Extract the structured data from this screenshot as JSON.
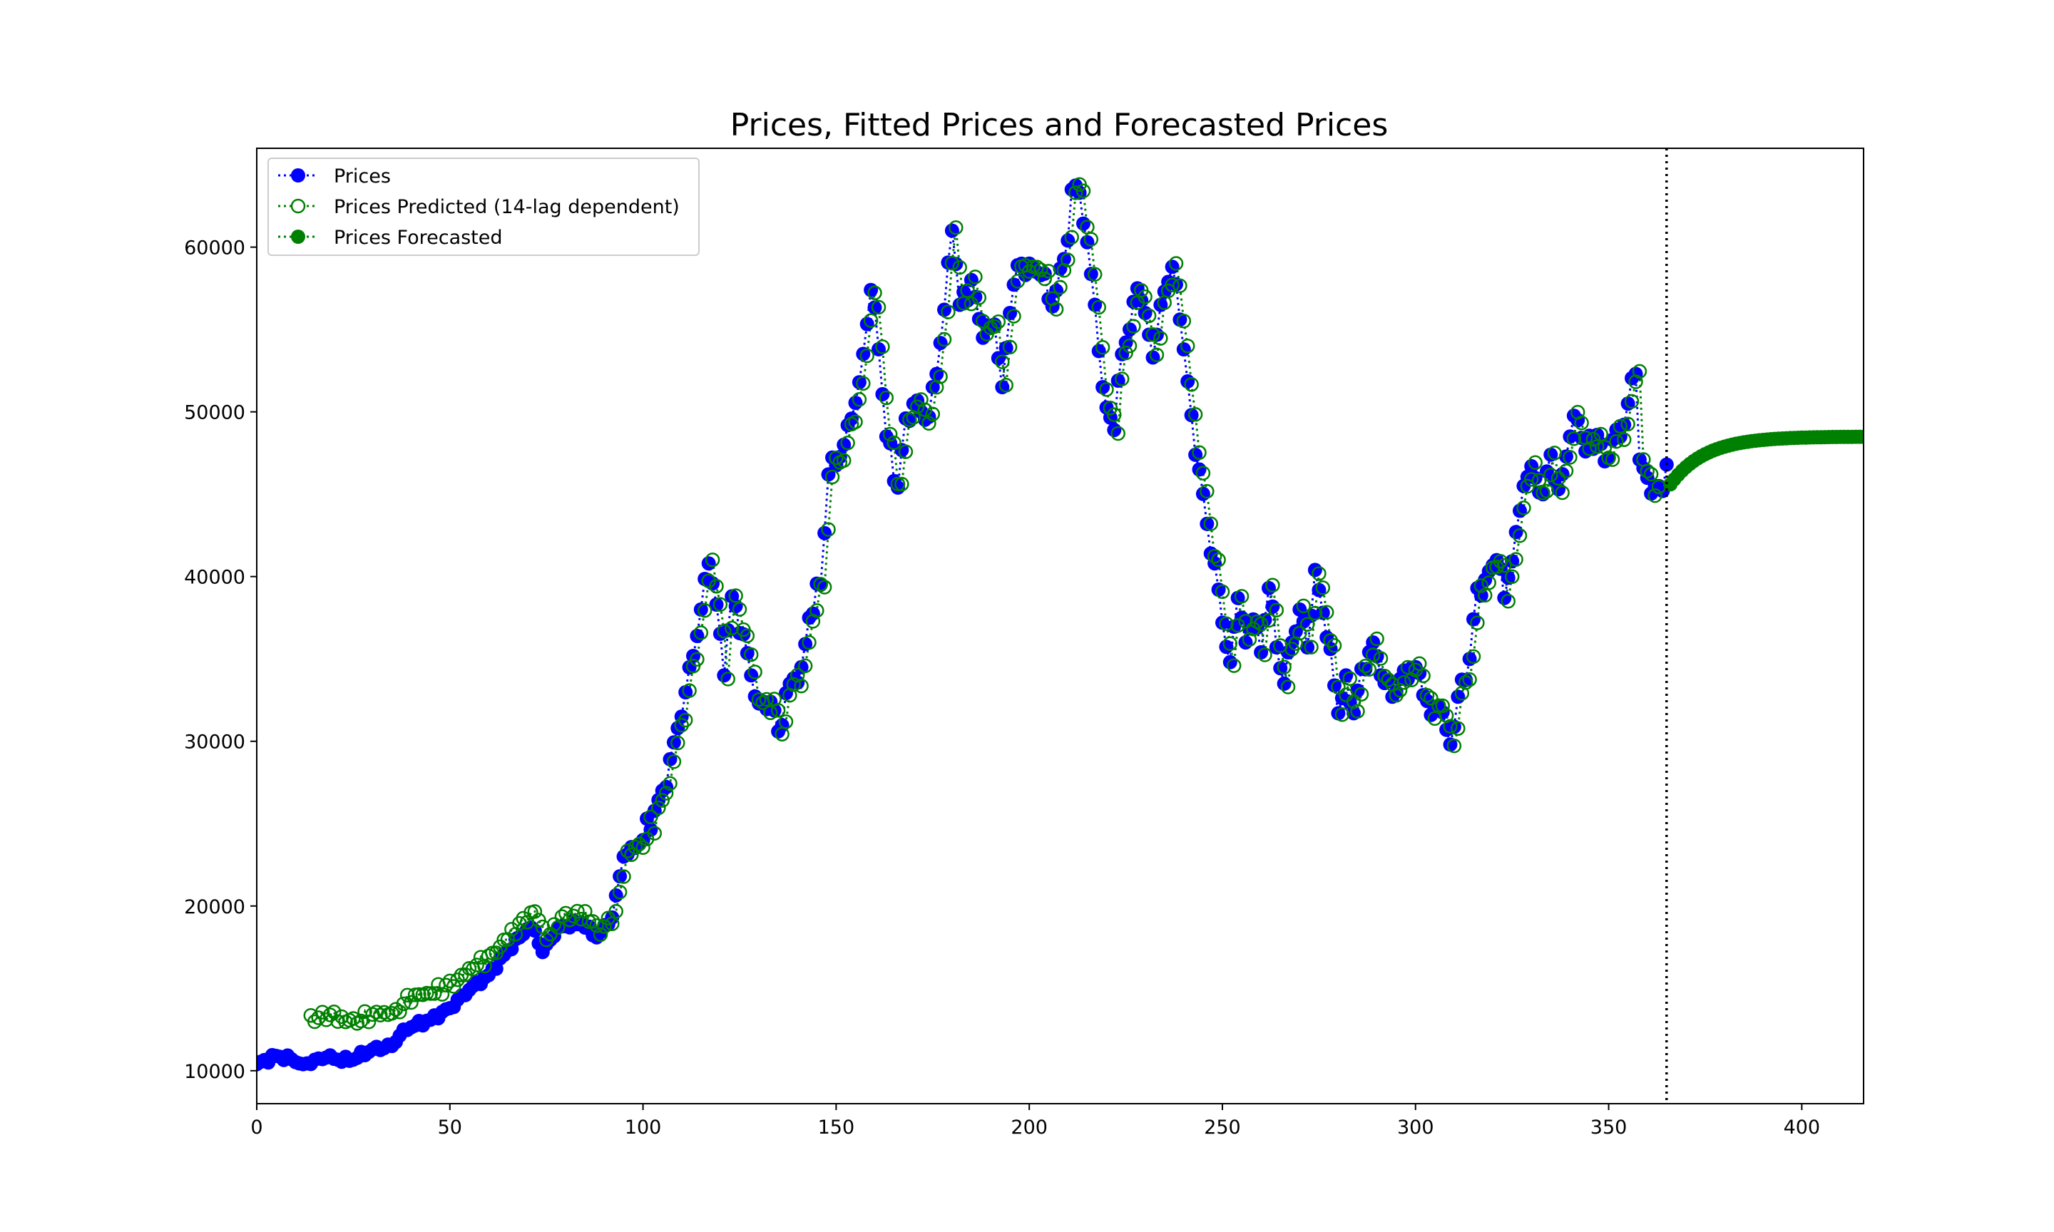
{
  "chart_data": {
    "type": "line",
    "title": "Prices, Fitted Prices and Forecasted Prices",
    "xlabel": "",
    "ylabel": "",
    "xlim": [
      0,
      416
    ],
    "ylim": [
      8000,
      66000
    ],
    "x_ticks": [
      0,
      50,
      100,
      150,
      200,
      250,
      300,
      350,
      400
    ],
    "y_ticks": [
      10000,
      20000,
      30000,
      40000,
      50000,
      60000
    ],
    "x_tick_labels": [
      "0",
      "50",
      "100",
      "150",
      "200",
      "250",
      "300",
      "350",
      "400"
    ],
    "y_tick_labels": [
      "10000",
      "20000",
      "30000",
      "40000",
      "50000",
      "60000"
    ],
    "grid": false,
    "legend_position": "top-left",
    "vertical_line": {
      "x": 365,
      "style": "dotted",
      "color": "#000000"
    },
    "prices_anchors": [
      [
        0,
        10400
      ],
      [
        5,
        10900
      ],
      [
        9,
        10700
      ],
      [
        12,
        10400
      ],
      [
        18,
        10800
      ],
      [
        24,
        10600
      ],
      [
        30,
        11300
      ],
      [
        35,
        11500
      ],
      [
        38,
        12500
      ],
      [
        45,
        13100
      ],
      [
        50,
        13800
      ],
      [
        55,
        14900
      ],
      [
        60,
        15800
      ],
      [
        65,
        17300
      ],
      [
        70,
        18600
      ],
      [
        72,
        18500
      ],
      [
        74,
        17200
      ],
      [
        78,
        18700
      ],
      [
        84,
        19000
      ],
      [
        88,
        18100
      ],
      [
        92,
        19300
      ],
      [
        95,
        23000
      ],
      [
        100,
        24000
      ],
      [
        105,
        27000
      ],
      [
        110,
        31500
      ],
      [
        115,
        38000
      ],
      [
        117,
        40800
      ],
      [
        119,
        38300
      ],
      [
        121,
        34000
      ],
      [
        123,
        38800
      ],
      [
        126,
        36500
      ],
      [
        128,
        34000
      ],
      [
        130,
        32300
      ],
      [
        133,
        32400
      ],
      [
        135,
        30600
      ],
      [
        138,
        33500
      ],
      [
        141,
        34500
      ],
      [
        143,
        37500
      ],
      [
        146,
        39500
      ],
      [
        148,
        46200
      ],
      [
        152,
        48000
      ],
      [
        156,
        51800
      ],
      [
        159,
        57400
      ],
      [
        161,
        53800
      ],
      [
        163,
        48500
      ],
      [
        166,
        45400
      ],
      [
        168,
        49600
      ],
      [
        170,
        50500
      ],
      [
        174,
        49700
      ],
      [
        176,
        52300
      ],
      [
        178,
        56200
      ],
      [
        180,
        61000
      ],
      [
        182,
        56500
      ],
      [
        185,
        58000
      ],
      [
        188,
        54500
      ],
      [
        191,
        55300
      ],
      [
        193,
        51500
      ],
      [
        195,
        56000
      ],
      [
        197,
        58900
      ],
      [
        200,
        59000
      ],
      [
        203,
        58300
      ],
      [
        206,
        56400
      ],
      [
        208,
        58700
      ],
      [
        210,
        60400
      ],
      [
        211,
        63500
      ],
      [
        213,
        63300
      ],
      [
        215,
        60300
      ],
      [
        217,
        56500
      ],
      [
        219,
        51500
      ],
      [
        222,
        48900
      ],
      [
        224,
        53500
      ],
      [
        226,
        55000
      ],
      [
        228,
        57500
      ],
      [
        230,
        56000
      ],
      [
        232,
        53300
      ],
      [
        235,
        57300
      ],
      [
        237,
        58800
      ],
      [
        239,
        55600
      ],
      [
        242,
        49800
      ],
      [
        244,
        46500
      ],
      [
        246,
        43200
      ],
      [
        248,
        40800
      ],
      [
        250,
        37200
      ],
      [
        252,
        34800
      ],
      [
        254,
        38700
      ],
      [
        256,
        36000
      ],
      [
        258,
        37400
      ],
      [
        260,
        35400
      ],
      [
        262,
        39300
      ],
      [
        264,
        35700
      ],
      [
        266,
        33500
      ],
      [
        268,
        36000
      ],
      [
        270,
        38000
      ],
      [
        272,
        35700
      ],
      [
        274,
        40400
      ],
      [
        276,
        37800
      ],
      [
        278,
        35600
      ],
      [
        280,
        31700
      ],
      [
        282,
        34000
      ],
      [
        284,
        31700
      ],
      [
        286,
        34400
      ],
      [
        289,
        36000
      ],
      [
        291,
        34000
      ],
      [
        294,
        32700
      ],
      [
        297,
        34300
      ],
      [
        300,
        34500
      ],
      [
        302,
        32800
      ],
      [
        304,
        31600
      ],
      [
        306,
        32100
      ],
      [
        308,
        30700
      ],
      [
        309,
        29800
      ],
      [
        311,
        32700
      ],
      [
        314,
        35000
      ],
      [
        316,
        39300
      ],
      [
        318,
        39800
      ],
      [
        321,
        41000
      ],
      [
        323,
        38700
      ],
      [
        326,
        42700
      ],
      [
        328,
        45500
      ],
      [
        330,
        46700
      ],
      [
        333,
        45000
      ],
      [
        335,
        47400
      ],
      [
        337,
        45300
      ],
      [
        340,
        48500
      ],
      [
        342,
        49500
      ],
      [
        344,
        47600
      ],
      [
        347,
        48600
      ],
      [
        349,
        47000
      ],
      [
        351,
        48300
      ],
      [
        353,
        48500
      ],
      [
        355,
        50500
      ],
      [
        357,
        52300
      ],
      [
        358,
        47100
      ],
      [
        360,
        46000
      ],
      [
        362,
        45500
      ],
      [
        364,
        45200
      ],
      [
        365,
        46800
      ]
    ],
    "series": [
      {
        "name": "Prices",
        "color": "#0000ff",
        "marker": "filled-circle",
        "linestyle": "dotted",
        "x_start": 0,
        "x_end": 365
      },
      {
        "name": "Prices Predicted (14-lag dependent)",
        "color": "#008000",
        "marker": "hollow-circle",
        "linestyle": "dotted",
        "x_start": 14,
        "x_end": 363,
        "relation_to_prices": "prices shifted by 1 step; offset +2700 at x=14 decaying to 0 by x=100"
      },
      {
        "name": "Prices Forecasted",
        "color": "#008000",
        "marker": "filled-circle",
        "linestyle": "dotted",
        "x_start": 366,
        "x_end": 416,
        "start_value": 45600,
        "asymptote": 48500
      }
    ]
  }
}
